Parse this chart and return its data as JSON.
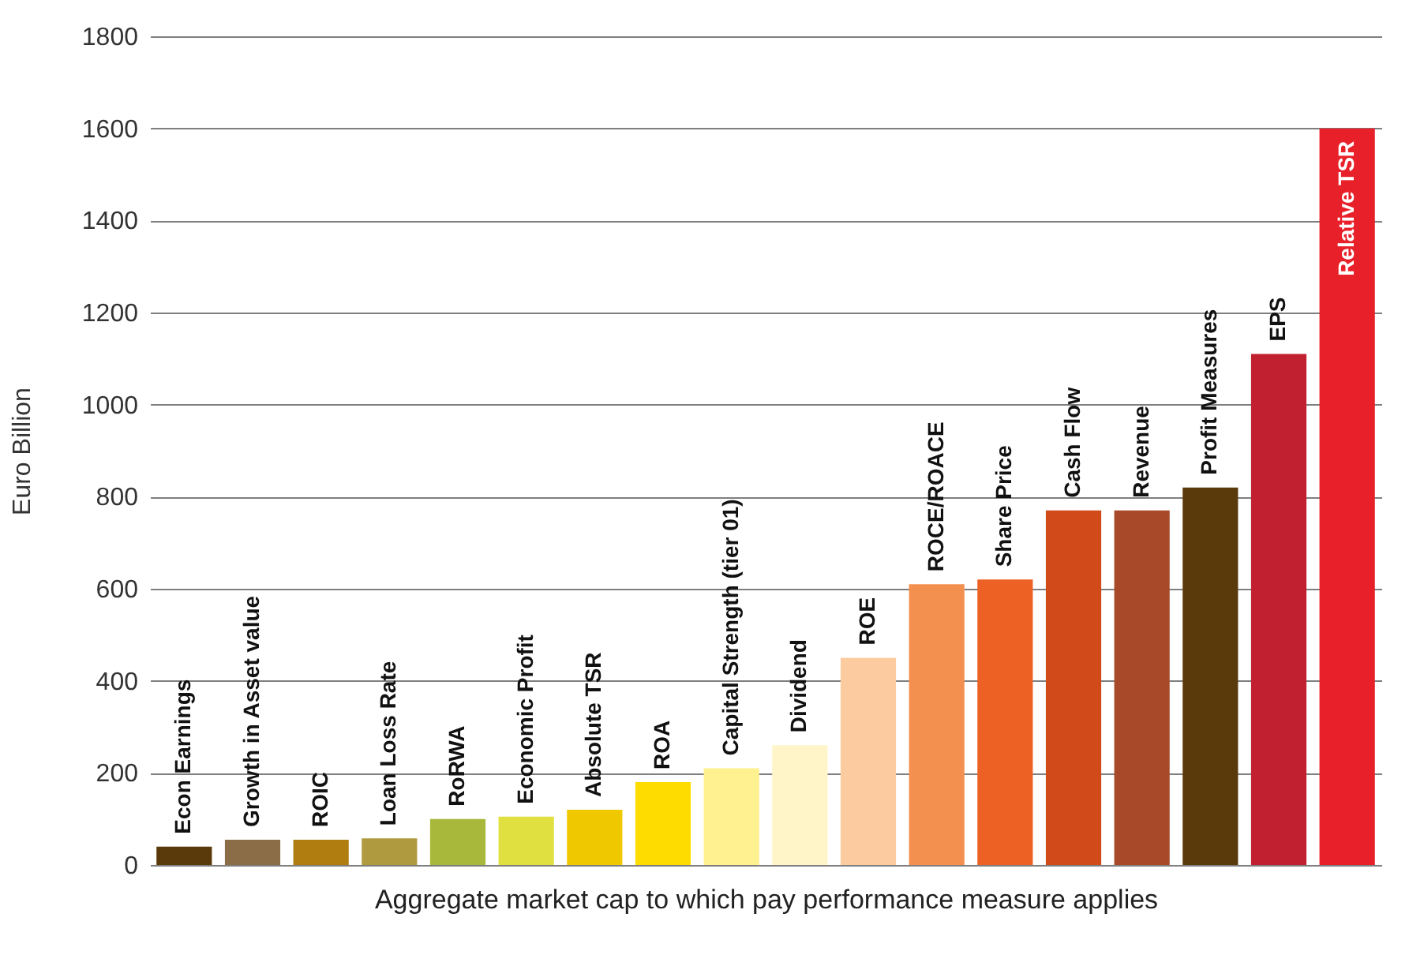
{
  "chart_data": {
    "type": "bar",
    "xlabel": "Aggregate market cap to which pay performance measure applies",
    "ylabel": "Euro Billion",
    "categories": [
      "Econ Earnings",
      "Growth in Asset value",
      "ROIC",
      "Loan Loss Rate",
      "RoRWA",
      "Economic Profit",
      "Absolute TSR",
      "ROA",
      "Capital Strength (tier 01)",
      "Dividend",
      "ROE",
      "ROCE/ROACE",
      "Share Price",
      "Cash Flow",
      "Revenue",
      "Profit Measures",
      "EPS",
      "Relative TSR"
    ],
    "values": [
      40,
      55,
      55,
      58,
      100,
      105,
      120,
      180,
      210,
      260,
      450,
      610,
      620,
      770,
      770,
      820,
      1110,
      1600
    ],
    "colors": [
      "#5a3a0a",
      "#8b6d47",
      "#b07d10",
      "#b09a40",
      "#a8b83a",
      "#e0e040",
      "#f0c800",
      "#ffdc00",
      "#fff090",
      "#fff5c8",
      "#fdcba0",
      "#f4904f",
      "#ee6125",
      "#d04a1a",
      "#a84a2a",
      "#5a3a0a",
      "#c0202f",
      "#e8202a"
    ],
    "ylim": [
      0,
      1800
    ],
    "yticks": [
      0,
      200,
      400,
      600,
      800,
      1000,
      1200,
      1400,
      1600,
      1800
    ],
    "grid": "y"
  }
}
